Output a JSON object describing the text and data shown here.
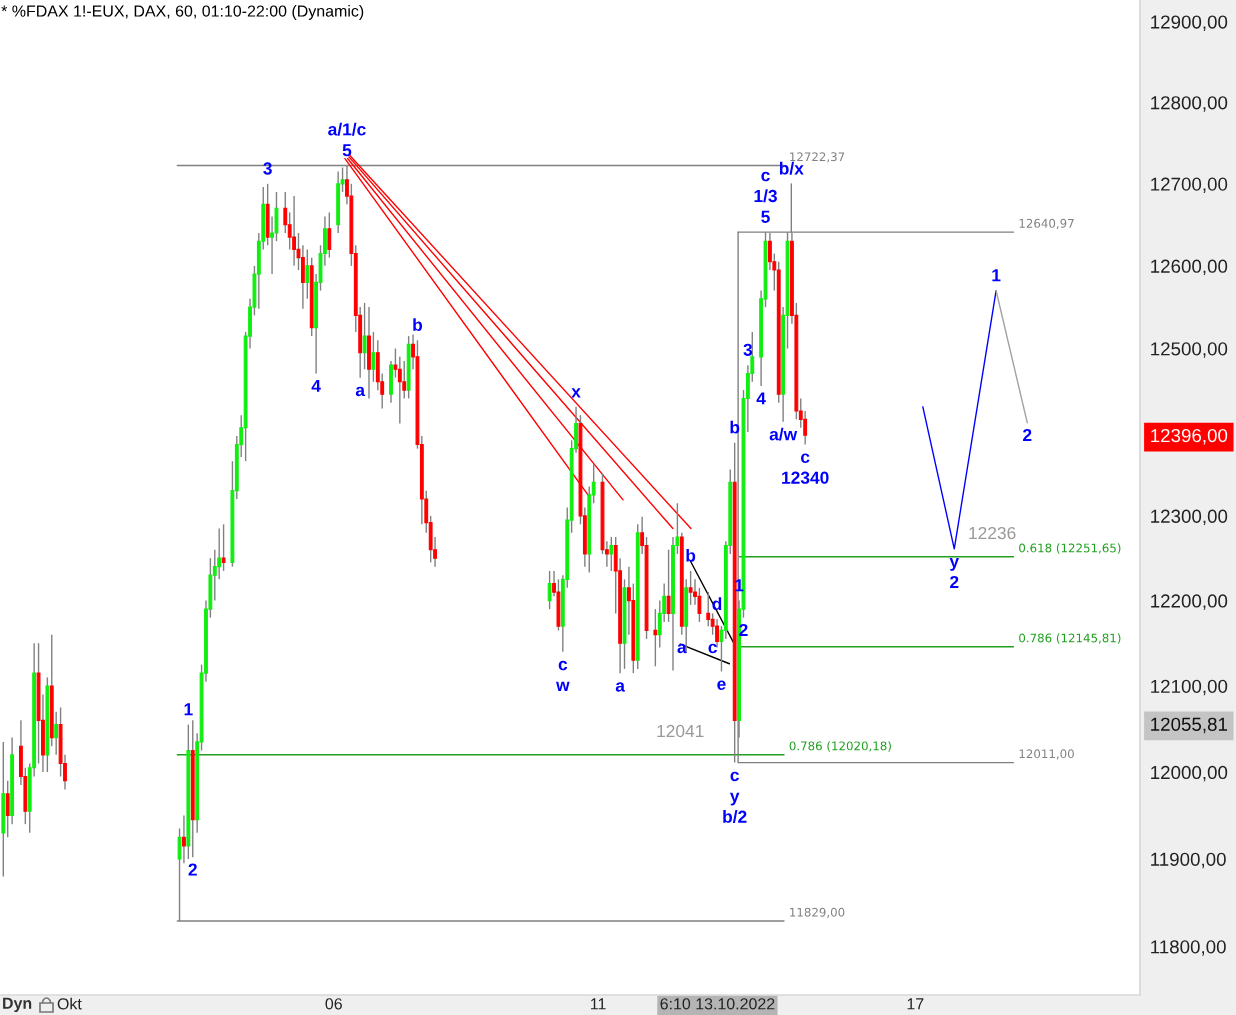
{
  "chart_data": {
    "type": "candlestick",
    "title": "* %FDAX 1!-EUX, DAX, 60, 01:10-22:00 (Dynamic)",
    "x": [
      "2022-09-29T18:00",
      "2022-09-29T20:00",
      "2022-09-29T22:00",
      "2022-09-30T02:00",
      "2022-09-30T04:00",
      "2022-09-30T06:00",
      "2022-09-30T08:00",
      "2022-09-30T10:00",
      "2022-09-30T12:00",
      "2022-09-30T14:00",
      "2022-09-30T16:00",
      "2022-09-30T18:00",
      "2022-09-30T20:00",
      "2022-09-30T22:00",
      "2022-10-03T02:00",
      "2022-10-03T04:00",
      "2022-10-03T06:00",
      "2022-10-03T08:00",
      "2022-10-03T10:00",
      "2022-10-03T12:00",
      "2022-10-03T14:00",
      "2022-10-03T16:00",
      "2022-10-03T18:00",
      "2022-10-03T20:00",
      "2022-10-03T22:00",
      "2022-10-04T02:00",
      "2022-10-04T04:00",
      "2022-10-04T06:00",
      "2022-10-04T08:00",
      "2022-10-04T10:00",
      "2022-10-04T12:00",
      "2022-10-04T14:00",
      "2022-10-04T16:00",
      "2022-10-04T18:00",
      "2022-10-04T20:00",
      "2022-10-04T22:00",
      "2022-10-05T02:00",
      "2022-10-05T04:00",
      "2022-10-05T06:00",
      "2022-10-05T08:00",
      "2022-10-05T10:00",
      "2022-10-05T12:00",
      "2022-10-05T14:00",
      "2022-10-05T16:00",
      "2022-10-05T18:00",
      "2022-10-05T20:00",
      "2022-10-05T22:00",
      "2022-10-06T02:00",
      "2022-10-06T04:00",
      "2022-10-06T06:00",
      "2022-10-06T08:00",
      "2022-10-06T10:00",
      "2022-10-06T12:00",
      "2022-10-06T14:00",
      "2022-10-06T16:00",
      "2022-10-06T18:00",
      "2022-10-06T20:00",
      "2022-10-06T22:00",
      "2022-10-07T02:00",
      "2022-10-07T04:00",
      "2022-10-07T06:00",
      "2022-10-07T08:00",
      "2022-10-07T10:00",
      "2022-10-07T12:00",
      "2022-10-07T14:00",
      "2022-10-07T16:00",
      "2022-10-07T18:00",
      "2022-10-07T20:00",
      "2022-10-07T22:00",
      "2022-10-10T02:00",
      "2022-10-10T04:00",
      "2022-10-10T06:00",
      "2022-10-10T08:00",
      "2022-10-10T10:00",
      "2022-10-10T12:00",
      "2022-10-10T14:00",
      "2022-10-10T16:00",
      "2022-10-10T18:00",
      "2022-10-10T20:00",
      "2022-10-10T22:00",
      "2022-10-11T02:00",
      "2022-10-11T04:00",
      "2022-10-11T06:00",
      "2022-10-11T08:00",
      "2022-10-11T10:00",
      "2022-10-11T12:00",
      "2022-10-11T14:00",
      "2022-10-11T16:00",
      "2022-10-11T18:00",
      "2022-10-11T20:00",
      "2022-10-11T22:00",
      "2022-10-12T02:00",
      "2022-10-12T04:00",
      "2022-10-12T06:00",
      "2022-10-12T08:00",
      "2022-10-12T10:00",
      "2022-10-12T12:00",
      "2022-10-12T14:00",
      "2022-10-12T16:00",
      "2022-10-12T18:00",
      "2022-10-12T20:00",
      "2022-10-12T22:00",
      "2022-10-13T02:00",
      "2022-10-13T04:00",
      "2022-10-13T06:00",
      "2022-10-13T08:00",
      "2022-10-13T10:00",
      "2022-10-13T12:00",
      "2022-10-13T14:00",
      "2022-10-13T16:00",
      "2022-10-13T18:00",
      "2022-10-13T20:00",
      "2022-10-13T22:00",
      "2022-10-14T02:00",
      "2022-10-14T04:00",
      "2022-10-14T06:00",
      "2022-10-14T08:00",
      "2022-10-14T10:00",
      "2022-10-14T12:00",
      "2022-10-14T14:00",
      "2022-10-14T16:00",
      "2022-10-14T18:00",
      "2022-10-14T20:00",
      "2022-10-14T22:00"
    ],
    "ohlc": [
      [
        11930,
        12035,
        11880,
        11975
      ],
      [
        11975,
        11990,
        11925,
        11950
      ],
      [
        11950,
        12040,
        11940,
        12020
      ],
      [
        12030,
        12060,
        11985,
        11995
      ],
      [
        11995,
        12005,
        11940,
        11955
      ],
      [
        11955,
        12010,
        11930,
        12005
      ],
      [
        12005,
        12150,
        11995,
        12115
      ],
      [
        12115,
        12150,
        12010,
        12060
      ],
      [
        12060,
        12090,
        12000,
        12020
      ],
      [
        12020,
        12110,
        12000,
        12100
      ],
      [
        12100,
        12160,
        12030,
        12040
      ],
      [
        12040,
        12070,
        12020,
        12055
      ],
      [
        12055,
        12075,
        11995,
        12010
      ],
      [
        12010,
        12020,
        11980,
        11990
      ],
      [
        11900,
        11935,
        11829,
        11925
      ],
      [
        11925,
        11950,
        11895,
        11915
      ],
      [
        11915,
        12055,
        11900,
        12025
      ],
      [
        12025,
        12060,
        11902,
        11945
      ],
      [
        11945,
        12045,
        11930,
        12035
      ],
      [
        12035,
        12125,
        12025,
        12115
      ],
      [
        12115,
        12200,
        12105,
        12190
      ],
      [
        12190,
        12250,
        12180,
        12230
      ],
      [
        12230,
        12260,
        12200,
        12240
      ],
      [
        12240,
        12285,
        12225,
        12250
      ],
      [
        12250,
        12290,
        12235,
        12245
      ],
      [
        12245,
        12365,
        12240,
        12330
      ],
      [
        12330,
        12395,
        12320,
        12385
      ],
      [
        12385,
        12420,
        12370,
        12405
      ],
      [
        12405,
        12520,
        12365,
        12515
      ],
      [
        12515,
        12560,
        12500,
        12550
      ],
      [
        12550,
        12600,
        12540,
        12590
      ],
      [
        12590,
        12640,
        12548,
        12630
      ],
      [
        12630,
        12696,
        12620,
        12675
      ],
      [
        12675,
        12700,
        12625,
        12635
      ],
      [
        12635,
        12660,
        12590,
        12640
      ],
      [
        12640,
        12690,
        12630,
        12670
      ],
      [
        12670,
        12690,
        12640,
        12650
      ],
      [
        12650,
        12665,
        12620,
        12635
      ],
      [
        12635,
        12685,
        12600,
        12620
      ],
      [
        12620,
        12640,
        12595,
        12610
      ],
      [
        12610,
        12625,
        12548,
        12580
      ],
      [
        12580,
        12620,
        12560,
        12600
      ],
      [
        12600,
        12610,
        12515,
        12525
      ],
      [
        12525,
        12590,
        12470,
        12580
      ],
      [
        12580,
        12625,
        12570,
        12615
      ],
      [
        12615,
        12660,
        12600,
        12645
      ],
      [
        12645,
        12665,
        12610,
        12620
      ],
      [
        12650,
        12715,
        12640,
        12700
      ],
      [
        12700,
        12720,
        12690,
        12705
      ],
      [
        12705,
        12722.37,
        12675,
        12685
      ],
      [
        12685,
        12700,
        12600,
        12615
      ],
      [
        12615,
        12625,
        12520,
        12540
      ],
      [
        12540,
        12550,
        12465,
        12495
      ],
      [
        12495,
        12555,
        12475,
        12515
      ],
      [
        12515,
        12550,
        12440,
        12475
      ],
      [
        12475,
        12520,
        12460,
        12495
      ],
      [
        12495,
        12510,
        12450,
        12460
      ],
      [
        12460,
        12470,
        12428,
        12445
      ],
      [
        12445,
        12485,
        12435,
        12480
      ],
      [
        12480,
        12500,
        12465,
        12475
      ],
      [
        12475,
        12490,
        12410,
        12460
      ],
      [
        12460,
        12485,
        12440,
        12450
      ],
      [
        12450,
        12515,
        12440,
        12505
      ],
      [
        12505,
        12517,
        12475,
        12490
      ],
      [
        12490,
        12510,
        12380,
        12385
      ],
      [
        12385,
        12395,
        12290,
        12320
      ],
      [
        12320,
        12330,
        12280,
        12292
      ],
      [
        12292,
        12300,
        12245,
        12260
      ],
      [
        12260,
        12275,
        12240,
        12250
      ],
      [
        12200,
        12235,
        12190,
        12220
      ],
      [
        12220,
        12235,
        12205,
        12210
      ],
      [
        12210,
        12225,
        12165,
        12170
      ],
      [
        12170,
        12230,
        12140,
        12225
      ],
      [
        12225,
        12310,
        12215,
        12295
      ],
      [
        12295,
        12390,
        12280,
        12380
      ],
      [
        12380,
        12430,
        12375,
        12410
      ],
      [
        12410,
        12420,
        12290,
        12300
      ],
      [
        12300,
        12310,
        12240,
        12255
      ],
      [
        12255,
        12335,
        12233,
        12325
      ],
      [
        12325,
        12362,
        12315,
        12340
      ],
      [
        12340,
        12350,
        12255,
        12260
      ],
      [
        12260,
        12270,
        12240,
        12255
      ],
      [
        12255,
        12275,
        12235,
        12265
      ],
      [
        12265,
        12275,
        12185,
        12235
      ],
      [
        12235,
        12250,
        12115,
        12150
      ],
      [
        12150,
        12225,
        12120,
        12215
      ],
      [
        12215,
        12240,
        12160,
        12200
      ],
      [
        12200,
        12220,
        12115,
        12130
      ],
      [
        12130,
        12290,
        12120,
        12280
      ],
      [
        12280,
        12299,
        12255,
        12265
      ],
      [
        12265,
        12275,
        12155,
        12165
      ],
      [
        12165,
        12190,
        12123,
        12160
      ],
      [
        12160,
        12200,
        12145,
        12185
      ],
      [
        12185,
        12220,
        12175,
        12205
      ],
      [
        12205,
        12260,
        12175,
        12185
      ],
      [
        12185,
        12275,
        12118,
        12265
      ],
      [
        12265,
        12315,
        12255,
        12275
      ],
      [
        12275,
        12280,
        12160,
        12170
      ],
      [
        12170,
        12225,
        12140,
        12215
      ],
      [
        12215,
        12235,
        12195,
        12210
      ],
      [
        12210,
        12225,
        12195,
        12205
      ],
      [
        12205,
        12215,
        12175,
        12185
      ],
      [
        12185,
        12210,
        12170,
        12178
      ],
      [
        12178,
        12185,
        12160,
        12170
      ],
      [
        12170,
        12178,
        12145,
        12152
      ],
      [
        12152,
        12170,
        12117,
        12165
      ],
      [
        12165,
        12270,
        12155,
        12265
      ],
      [
        12265,
        12355,
        12255,
        12340
      ],
      [
        12340,
        12387,
        12011,
        12060
      ],
      [
        12060,
        12200,
        12040,
        12190
      ],
      [
        12190,
        12450,
        12180,
        12440
      ],
      [
        12440,
        12480,
        12400,
        12470
      ],
      [
        12470,
        12520,
        12460,
        12490
      ],
      [
        12490,
        12570,
        12455,
        12560
      ],
      [
        12560,
        12640.97,
        12550,
        12630
      ],
      [
        12630,
        12640,
        12595,
        12605
      ],
      [
        12605,
        12615,
        12570,
        12595
      ],
      [
        12595,
        12605,
        12435,
        12445
      ],
      [
        12445,
        12550,
        12412,
        12540
      ],
      [
        12540,
        12641,
        12500,
        12630
      ],
      [
        12630,
        12640,
        12530,
        12540
      ],
      [
        12540,
        12555,
        12415,
        12425
      ],
      [
        12425,
        12440,
        12405,
        12415
      ],
      [
        12415,
        12425,
        12385,
        12396
      ]
    ],
    "colors": [
      "#11ee11",
      "#ff0000",
      "#11ee11",
      "#ff0000",
      "#ff0000",
      "#11ee11",
      "#11ee11",
      "#ff0000",
      "#ff0000",
      "#11ee11",
      "#ff0000",
      "#11ee11",
      "#ff0000",
      "#ff0000",
      "#11ee11",
      "#ff0000",
      "#11ee11",
      "#ff0000",
      "#11ee11",
      "#11ee11",
      "#11ee11",
      "#11ee11",
      "#11ee11",
      "#11ee11",
      "#ff0000",
      "#11ee11",
      "#11ee11",
      "#11ee11",
      "#11ee11",
      "#11ee11",
      "#11ee11",
      "#11ee11",
      "#11ee11",
      "#ff0000",
      "#11ee11",
      "#11ee11",
      "#ff0000",
      "#ff0000",
      "#ff0000",
      "#ff0000",
      "#ff0000",
      "#11ee11",
      "#ff0000",
      "#11ee11",
      "#11ee11",
      "#11ee11",
      "#ff0000",
      "#11ee11",
      "#11ee11",
      "#ff0000",
      "#ff0000",
      "#ff0000",
      "#ff0000",
      "#11ee11",
      "#ff0000",
      "#11ee11",
      "#ff0000",
      "#ff0000",
      "#11ee11",
      "#ff0000",
      "#ff0000",
      "#ff0000",
      "#11ee11",
      "#ff0000",
      "#ff0000",
      "#ff0000",
      "#ff0000",
      "#ff0000",
      "#ff0000",
      "#11ee11",
      "#ff0000",
      "#ff0000",
      "#11ee11",
      "#11ee11",
      "#11ee11",
      "#11ee11",
      "#ff0000",
      "#ff0000",
      "#11ee11",
      "#11ee11",
      "#ff0000",
      "#ff0000",
      "#11ee11",
      "#ff0000",
      "#ff0000",
      "#11ee11",
      "#ff0000",
      "#ff0000",
      "#11ee11",
      "#ff0000",
      "#ff0000",
      "#ff0000",
      "#11ee11",
      "#11ee11",
      "#ff0000",
      "#11ee11",
      "#11ee11",
      "#ff0000",
      "#11ee11",
      "#ff0000",
      "#ff0000",
      "#ff0000",
      "#ff0000",
      "#ff0000",
      "#ff0000",
      "#11ee11",
      "#11ee11",
      "#11ee11",
      "#ff0000",
      "#11ee11",
      "#11ee11",
      "#11ee11",
      "#11ee11",
      "#11ee11",
      "#11ee11",
      "#ff0000",
      "#ff0000",
      "#ff0000",
      "#11ee11",
      "#11ee11",
      "#ff0000",
      "#ff0000",
      "#ff0000",
      "#ff0000"
    ],
    "series": [
      {
        "type": "line",
        "name": "12722,37",
        "color": "#808080",
        "x": [
          "2022-10-03T01:00",
          "2022-10-14T12:23"
        ],
        "values": [
          12722.37,
          12722.37
        ]
      },
      {
        "type": "line",
        "name": "11829,00",
        "color": "#808080",
        "x": [
          "2022-10-03T01:00",
          "2022-10-14T12:23"
        ],
        "values": [
          11829,
          11829
        ]
      },
      {
        "type": "line",
        "name": "0.786 (12020,18)",
        "color": "#20a020",
        "x": [
          "2022-10-03T01:00",
          "2022-10-14T12:23"
        ],
        "values": [
          12020.18,
          12020.18
        ]
      },
      {
        "type": "line",
        "name": "12640,97",
        "color": "#808080",
        "x": [
          "2022-10-13T15:34",
          "2022-10-18T20:34"
        ],
        "values": [
          12640.97,
          12640.97
        ]
      },
      {
        "type": "line",
        "name": "12011,00",
        "color": "#808080",
        "x": [
          "2022-10-13T15:34",
          "2022-10-18T20:34"
        ],
        "values": [
          12011,
          12011
        ]
      },
      {
        "type": "line",
        "name": "0.618 (12251,65)",
        "color": "#20a020",
        "x": [
          "2022-10-13T16:10",
          "2022-10-18T20:34"
        ],
        "values": [
          12251.65,
          12251.65
        ]
      },
      {
        "type": "line",
        "name": "0.786 (12145,81)",
        "color": "#20a020",
        "x": [
          "2022-10-13T16:10",
          "2022-10-18T20:34"
        ],
        "values": [
          12145.81,
          12145.81
        ]
      },
      {
        "type": "line",
        "color": "#808080",
        "x": [
          "2022-10-13T15:34",
          "2022-10-13T15:34"
        ],
        "values": [
          12640.97,
          12011
        ]
      },
      {
        "type": "line",
        "color": "#808080",
        "x": [
          "2022-10-14T15:43",
          "2022-10-14T15:43"
        ],
        "values": [
          12640.97,
          12700
        ]
      },
      {
        "type": "line",
        "color": "#ff0000",
        "x": [
          "2022-10-06T05:06",
          "2022-10-10T19:40"
        ],
        "values": [
          12731,
          12324
        ]
      },
      {
        "type": "line",
        "color": "#ff0000",
        "x": [
          "2022-10-06T06:19",
          "2022-10-11T11:19"
        ],
        "values": [
          12731,
          12319
        ]
      },
      {
        "type": "line",
        "color": "#ff0000",
        "x": [
          "2022-10-06T06:55",
          "2022-10-12T09:57"
        ],
        "values": [
          12733,
          12285
        ]
      },
      {
        "type": "line",
        "color": "#ff0000",
        "x": [
          "2022-10-06T07:13",
          "2022-10-12T18:09"
        ],
        "values": [
          12735,
          12285
        ]
      },
      {
        "type": "line",
        "color": "#000000",
        "x": [
          "2022-10-12T17:50",
          "2022-10-13T13:26"
        ],
        "values": [
          12247,
          12151
        ]
      },
      {
        "type": "line",
        "color": "#000000",
        "x": [
          "2022-10-12T13:17",
          "2022-10-13T11:37"
        ],
        "values": [
          12149,
          12126
        ]
      },
      {
        "type": "line",
        "color": "#0000ff",
        "x": [
          "2022-10-17T03:25",
          "2022-10-17T17:41",
          "2022-10-18T12:41"
        ],
        "values": [
          12430,
          12261,
          12570
        ]
      },
      {
        "type": "line",
        "color": "#a0a0a0",
        "x": [
          "2022-10-18T12:41",
          "2022-10-19T02:49"
        ],
        "values": [
          12570,
          12411
        ]
      }
    ],
    "annotations": [
      "Dyn",
      {
        "text": "5",
        "x": "2022-10-06T06:00",
        "y": 12722.37
      },
      {
        "text": "a/1/c",
        "x": "2022-10-06T06:00",
        "y": 12722.37
      },
      {
        "text": "3",
        "x": "2022-10-04T18:00",
        "y": 12700
      },
      {
        "text": "4",
        "x": "2022-10-05T16:00",
        "y": 12470
      },
      {
        "text": "1",
        "x": "2022-10-03T06:00",
        "y": 12055
      },
      {
        "text": "2",
        "x": "2022-10-03T08:00",
        "y": 11902
      },
      {
        "text": "a",
        "x": "2022-10-06T12:00",
        "y": 12465
      },
      {
        "text": "b",
        "x": "2022-10-07T14:00",
        "y": 12510
      },
      {
        "text": "c",
        "x": "2022-10-10T08:00",
        "y": 12140
      },
      {
        "text": "w",
        "x": "2022-10-10T08:00",
        "y": 12140
      },
      {
        "text": "x",
        "x": "2022-10-10T14:00",
        "y": 12430
      },
      {
        "text": "a",
        "x": "2022-10-11T10:00",
        "y": 12115
      },
      {
        "text": "b",
        "x": "2022-10-12T18:00",
        "y": 12235
      },
      {
        "text": "a",
        "x": "2022-10-12T14:00",
        "y": 12160
      },
      {
        "text": "c",
        "x": "2022-10-13T04:00",
        "y": 12160
      },
      {
        "text": "d",
        "x": "2022-10-13T06:00",
        "y": 12178
      },
      {
        "text": "e",
        "x": "2022-10-13T08:00",
        "y": 12117
      },
      {
        "text": "b",
        "x": "2022-10-13T14:00",
        "y": 12387
      },
      {
        "text": "c",
        "x": "2022-10-13T14:00",
        "y": 12011
      },
      {
        "text": "y",
        "x": "2022-10-13T14:00",
        "y": 12011
      },
      {
        "text": "b/2",
        "x": "2022-10-13T14:00",
        "y": 12011
      },
      {
        "text": "1",
        "x": "2022-10-13T16:00",
        "y": 12200
      },
      {
        "text": "2",
        "x": "2022-10-13T18:00",
        "y": 12180
      },
      {
        "text": "3",
        "x": "2022-10-13T20:00",
        "y": 12480
      },
      {
        "text": "4",
        "x": "2022-10-14T02:00",
        "y": 12455
      },
      {
        "text": "5",
        "x": "2022-10-14T04:00",
        "y": 12640.97
      },
      {
        "text": "1/3",
        "x": "2022-10-14T04:00",
        "y": 12640.97
      },
      {
        "text": "c",
        "x": "2022-10-14T04:00",
        "y": 12640.97
      },
      {
        "text": "b/x",
        "x": "2022-10-14T15:43",
        "y": 12700
      },
      {
        "text": "a/w",
        "x": "2022-10-14T12:00",
        "y": 12412
      },
      {
        "text": "c",
        "x": "2022-10-14T22:00",
        "y": 12385
      },
      {
        "text": "12340",
        "x": "2022-10-14T22:00",
        "y": 12385
      },
      {
        "text": "y",
        "x": "2022-10-17T17:41",
        "y": 12261
      },
      {
        "text": "2",
        "x": "2022-10-17T17:41",
        "y": 12261
      },
      {
        "text": "1",
        "x": "2022-10-18T12:41",
        "y": 12570
      },
      {
        "text": "2",
        "x": "2022-10-19T02:49",
        "y": 12411
      },
      {
        "text": "12041",
        "x": "2022-10-12T13:17",
        "y": 12020.18
      },
      {
        "text": "12236",
        "x": "2022-10-18T10:52",
        "y": 12251.65
      }
    ],
    "xlim": [
      "2022-09-29T16:30",
      "2022-10-21T06:00"
    ],
    "xticks": [
      {
        "value": "2022-10-01",
        "label": "Okt"
      },
      {
        "value": "2022-10-06",
        "label": "06"
      },
      {
        "value": "2022-10-11",
        "label": "11"
      },
      {
        "value": "2022-10-13T06:10",
        "label": "6:10 13.10.2022"
      },
      {
        "value": "2022-10-17",
        "label": "17"
      }
    ],
    "ylim": [
      11745,
      12927
    ],
    "yticks": [
      {
        "value": 11800,
        "label": "11800,00"
      },
      {
        "value": 11900,
        "label": "11900,00"
      },
      {
        "value": 12000,
        "label": "12000,00"
      },
      {
        "value": 12055.81,
        "label": "12055,81"
      },
      {
        "value": 12100,
        "label": "12100,00"
      },
      {
        "value": 12200,
        "label": "12200,00"
      },
      {
        "value": 12300,
        "label": "12300,00"
      },
      {
        "value": 12396,
        "label": "12396,00"
      },
      {
        "value": 12500,
        "label": "12500,00"
      },
      {
        "value": 12600,
        "label": "12600,00"
      },
      {
        "value": 12700,
        "label": "12700,00"
      },
      {
        "value": 12800,
        "label": "12800,00"
      },
      {
        "value": 12900,
        "label": "12900,00"
      }
    ],
    "log": true,
    "marker": "none"
  }
}
